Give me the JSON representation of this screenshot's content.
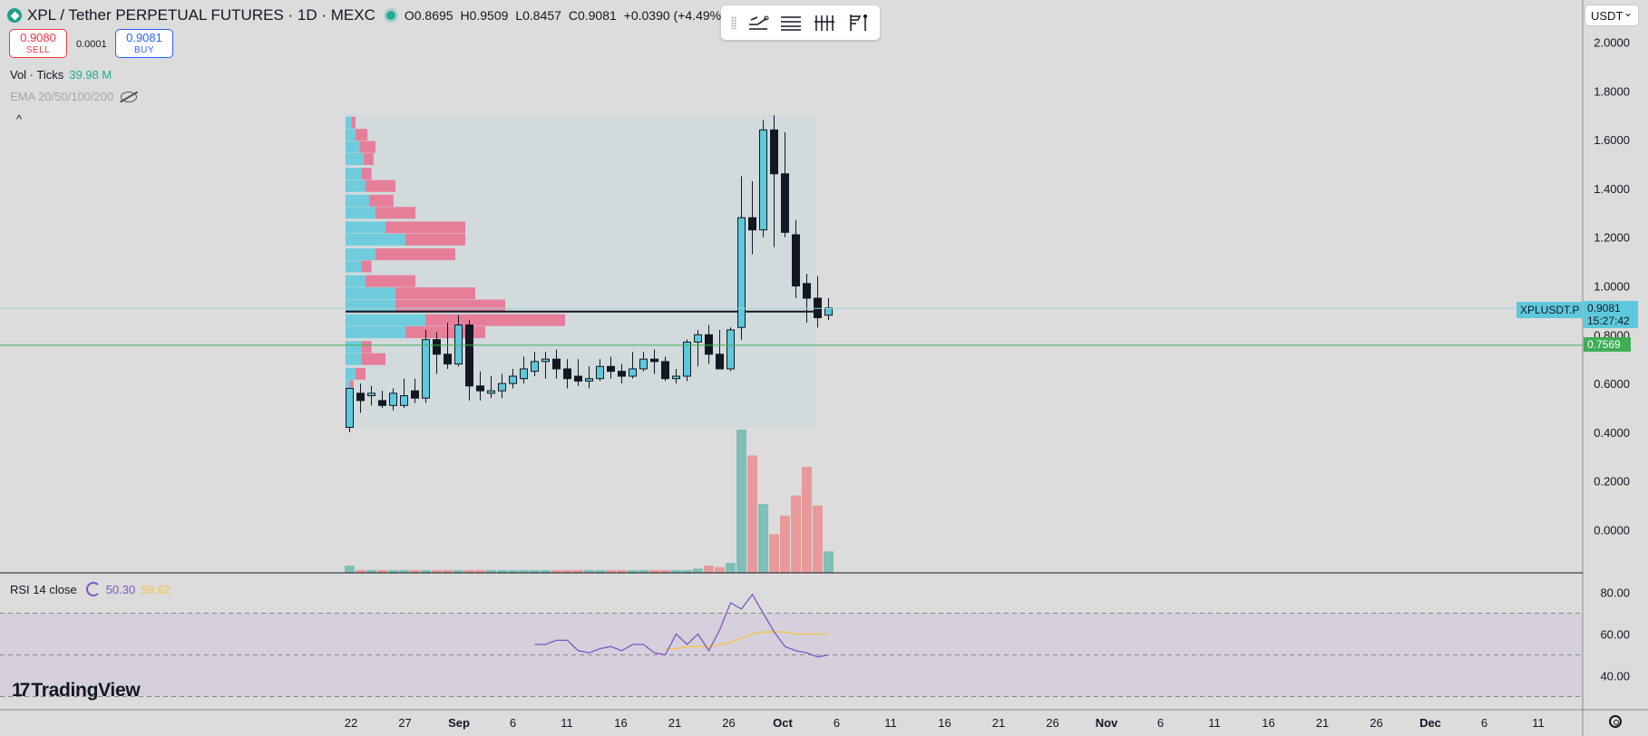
{
  "header": {
    "title": "XPL / Tether PERPETUAL FUTURES · 1D · MEXC",
    "ohlc": [
      {
        "k": "O",
        "v": "0.8695"
      },
      {
        "k": "H",
        "v": "0.9509"
      },
      {
        "k": "L",
        "v": "0.8457"
      },
      {
        "k": "C",
        "v": "0.9081"
      }
    ],
    "change": "+0.0390 (+4.49%)"
  },
  "trade": {
    "sell_price": "0.9080",
    "sell_label": "SELL",
    "spread": "0.0001",
    "buy_price": "0.9081",
    "buy_label": "BUY"
  },
  "indicators": {
    "vol_label": "Vol · Ticks",
    "vol_value": "39.98 M",
    "ema_label": "EMA 20/50/100/200",
    "rsi_label": "RSI 14 close",
    "rsi_value": "50.30",
    "rsi_ma_value": "59.62"
  },
  "currency": "USDT",
  "symbol_tag": "XPLUSDT.P",
  "last_price": "0.9081",
  "countdown": "15:27:42",
  "level_price": "0.7569",
  "branding": "TradingView",
  "colors": {
    "up": "#5ec9dc",
    "down": "#131722",
    "vol_up": "#7fbfb8",
    "vol_down": "#e89a9a",
    "rsi": "#7e57c2",
    "rsi_ma": "#f7c244",
    "level": "#3eae55",
    "profile_up": "#5ec9dc",
    "profile_down": "#ea6d8e"
  },
  "price_axis": [
    "2.0000",
    "1.8000",
    "1.6000",
    "1.4000",
    "1.2000",
    "1.0000",
    "0.8000",
    "0.6000",
    "0.4000",
    "0.2000",
    "0.0000"
  ],
  "rsi_axis": [
    "80.00",
    "60.00",
    "40.00"
  ],
  "time_axis": [
    "22",
    "27",
    "Sep",
    "6",
    "11",
    "16",
    "21",
    "26",
    "Oct",
    "6",
    "11",
    "16",
    "21",
    "26",
    "Nov",
    "6",
    "11",
    "16",
    "21",
    "26",
    "Dec",
    "6",
    "11"
  ],
  "chart_data": {
    "type": "candlestick",
    "x": [
      "Aug 21",
      "Aug 22",
      "Aug 23",
      "Aug 24",
      "Aug 25",
      "Aug 26",
      "Aug 27",
      "Aug 28",
      "Aug 29",
      "Aug 30",
      "Aug 31",
      "Sep 1",
      "Sep 2",
      "Sep 3",
      "Sep 4",
      "Sep 5",
      "Sep 6",
      "Sep 7",
      "Sep 8",
      "Sep 9",
      "Sep 10",
      "Sep 11",
      "Sep 12",
      "Sep 13",
      "Sep 14",
      "Sep 15",
      "Sep 16",
      "Sep 17",
      "Sep 18",
      "Sep 19",
      "Sep 20",
      "Sep 21",
      "Sep 22",
      "Sep 23",
      "Sep 24",
      "Sep 25",
      "Sep 26",
      "Sep 27",
      "Sep 28",
      "Sep 29",
      "Sep 30",
      "Oct 1",
      "Oct 2",
      "Oct 3",
      "Oct 4"
    ],
    "open": [
      0.42,
      0.56,
      0.55,
      0.53,
      0.51,
      0.51,
      0.57,
      0.54,
      0.78,
      0.72,
      0.68,
      0.84,
      0.59,
      0.56,
      0.57,
      0.6,
      0.62,
      0.65,
      0.69,
      0.7,
      0.66,
      0.63,
      0.61,
      0.62,
      0.67,
      0.65,
      0.63,
      0.66,
      0.7,
      0.69,
      0.62,
      0.63,
      0.77,
      0.8,
      0.72,
      0.66,
      0.83,
      1.28,
      1.23,
      1.64,
      1.46,
      1.21,
      1.01,
      0.95,
      0.88
    ],
    "high": [
      0.57,
      0.6,
      0.59,
      0.57,
      0.58,
      0.62,
      0.62,
      0.82,
      0.81,
      0.85,
      0.88,
      0.86,
      0.65,
      0.63,
      0.64,
      0.66,
      0.71,
      0.73,
      0.73,
      0.74,
      0.7,
      0.7,
      0.67,
      0.7,
      0.71,
      0.68,
      0.73,
      0.73,
      0.74,
      0.71,
      0.66,
      0.78,
      0.82,
      0.84,
      0.82,
      0.83,
      1.45,
      1.43,
      1.68,
      1.7,
      1.63,
      1.27,
      1.05,
      1.04,
      0.95
    ],
    "low": [
      0.4,
      0.48,
      0.51,
      0.5,
      0.49,
      0.5,
      0.52,
      0.52,
      0.64,
      0.66,
      0.67,
      0.53,
      0.53,
      0.54,
      0.54,
      0.58,
      0.6,
      0.63,
      0.62,
      0.62,
      0.58,
      0.59,
      0.58,
      0.61,
      0.62,
      0.6,
      0.62,
      0.65,
      0.64,
      0.61,
      0.6,
      0.61,
      0.67,
      0.68,
      0.66,
      0.65,
      0.78,
      1.13,
      1.2,
      1.16,
      1.2,
      0.95,
      0.85,
      0.83,
      0.86
    ],
    "close": [
      0.58,
      0.53,
      0.56,
      0.51,
      0.56,
      0.55,
      0.54,
      0.78,
      0.72,
      0.68,
      0.84,
      0.59,
      0.57,
      0.57,
      0.6,
      0.63,
      0.66,
      0.69,
      0.7,
      0.66,
      0.62,
      0.61,
      0.62,
      0.67,
      0.65,
      0.63,
      0.66,
      0.7,
      0.69,
      0.62,
      0.63,
      0.77,
      0.8,
      0.72,
      0.66,
      0.82,
      1.28,
      1.23,
      1.64,
      1.46,
      1.22,
      1.0,
      0.95,
      0.87,
      0.91
    ],
    "volume_relative": [
      0.05,
      0.02,
      0.02,
      0.02,
      0.02,
      0.02,
      0.02,
      0.02,
      0.02,
      0.02,
      0.02,
      0.02,
      0.02,
      0.02,
      0.02,
      0.02,
      0.02,
      0.02,
      0.02,
      0.02,
      0.02,
      0.02,
      0.02,
      0.02,
      0.02,
      0.02,
      0.02,
      0.02,
      0.02,
      0.02,
      0.02,
      0.02,
      0.03,
      0.05,
      0.04,
      0.07,
      1.0,
      0.82,
      0.48,
      0.27,
      0.4,
      0.54,
      0.74,
      0.47,
      0.15
    ],
    "volume_profile": {
      "price_levels": [
        1.67,
        1.62,
        1.57,
        1.52,
        1.46,
        1.41,
        1.35,
        1.3,
        1.24,
        1.19,
        1.13,
        1.08,
        1.02,
        0.97,
        0.92,
        0.86,
        0.81,
        0.75,
        0.7,
        0.64,
        0.59
      ],
      "up": [
        0.03,
        0.05,
        0.07,
        0.09,
        0.08,
        0.1,
        0.12,
        0.15,
        0.2,
        0.3,
        0.15,
        0.08,
        0.1,
        0.25,
        0.25,
        0.4,
        0.3,
        0.08,
        0.08,
        0.05,
        0.02
      ],
      "down": [
        0.02,
        0.06,
        0.08,
        0.05,
        0.05,
        0.15,
        0.12,
        0.2,
        0.4,
        0.3,
        0.4,
        0.05,
        0.25,
        0.4,
        0.55,
        0.7,
        0.4,
        0.05,
        0.12,
        0.05,
        0.02
      ],
      "poc": 0.91
    },
    "rsi_series": [
      null,
      null,
      null,
      null,
      null,
      null,
      null,
      null,
      null,
      null,
      null,
      null,
      null,
      null,
      null,
      null,
      null,
      55,
      55,
      57,
      57,
      52,
      51,
      53,
      54,
      52,
      55,
      55,
      51,
      50,
      60,
      55,
      60,
      52,
      62,
      75,
      72,
      79,
      70,
      61,
      54,
      52,
      51,
      49,
      50
    ],
    "rsi_ma_series": [
      null,
      null,
      null,
      null,
      null,
      null,
      null,
      null,
      null,
      null,
      null,
      null,
      null,
      null,
      null,
      null,
      null,
      null,
      null,
      null,
      null,
      null,
      null,
      null,
      null,
      null,
      null,
      null,
      null,
      53,
      53,
      54,
      54,
      54,
      55,
      56,
      58,
      60,
      61,
      61,
      61,
      60,
      60,
      60,
      60
    ]
  }
}
